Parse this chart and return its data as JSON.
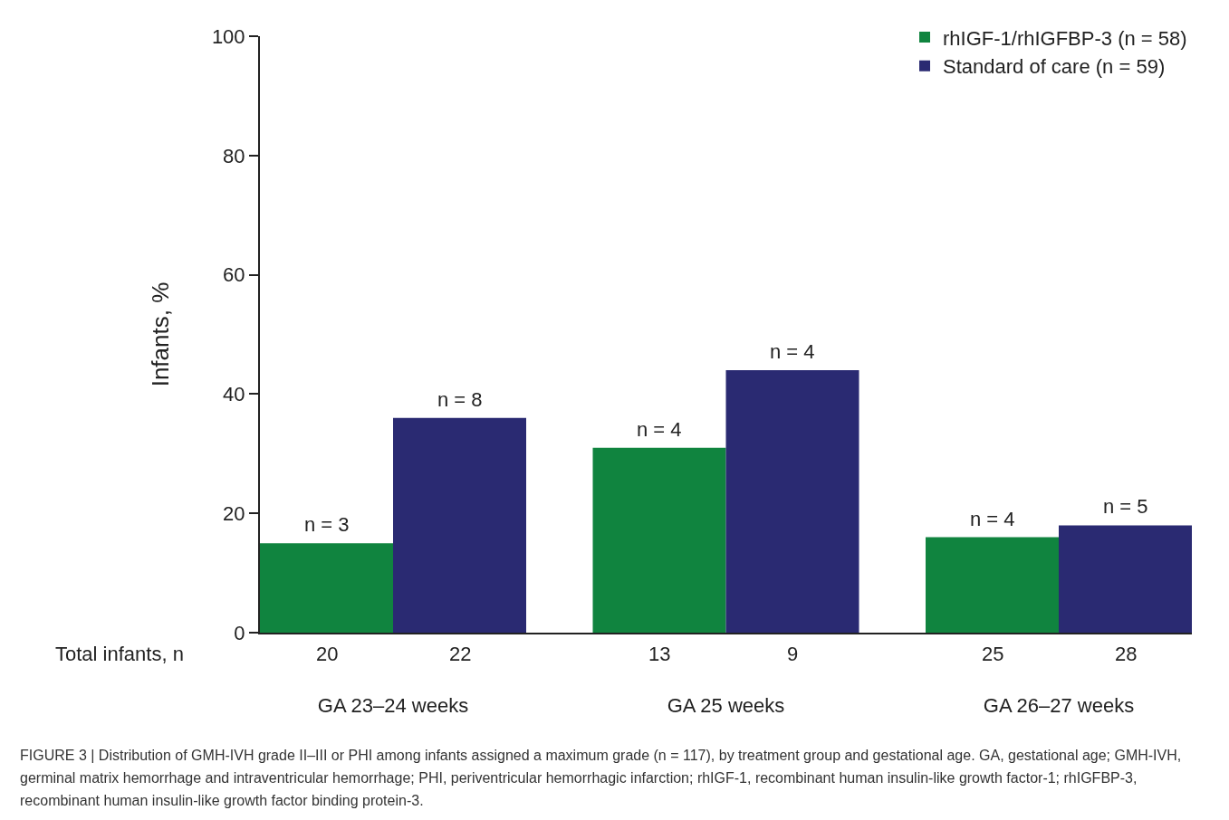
{
  "chart_data": {
    "type": "bar",
    "ylabel": "Infants, %",
    "categories": [
      "GA 23–24 weeks",
      "GA 25 weeks",
      "GA 26–27 weeks"
    ],
    "series": [
      {
        "name": "rhIGF-1/rhIGFBP-3 (n = 58)",
        "color": "#10843f",
        "values": [
          15,
          31,
          16
        ]
      },
      {
        "name": "Standard of care (n = 59)",
        "color": "#2a2a72",
        "values": [
          36,
          44,
          18
        ]
      }
    ],
    "ylim": [
      0,
      100
    ],
    "yticks": [
      0,
      20,
      40,
      60,
      80,
      100
    ],
    "grid": false,
    "legend": "top right",
    "annotations": [
      "Total infants, n",
      "20",
      "22",
      "13",
      "9",
      "25",
      "28",
      "n = 3",
      "n = 8",
      "n = 4",
      "n = 4",
      "n = 4",
      "n = 5",
      "FIGURE 3 | Distribution of GMH-IVH grade II–III or PHI among infants assigned a maximum grade (n = 117), by treatment group and gestational age. GA, gestational age; GMH-IVH, germinal matrix hemorrhage and intraventricular hemorrhage; PHI, periventricular hemorrhagic infarction; rhIGF-1, recombinant human insulin-like growth factor-1; rhIGFBP-3, recombinant human insulin-like growth factor binding protein-3."
    ]
  }
}
